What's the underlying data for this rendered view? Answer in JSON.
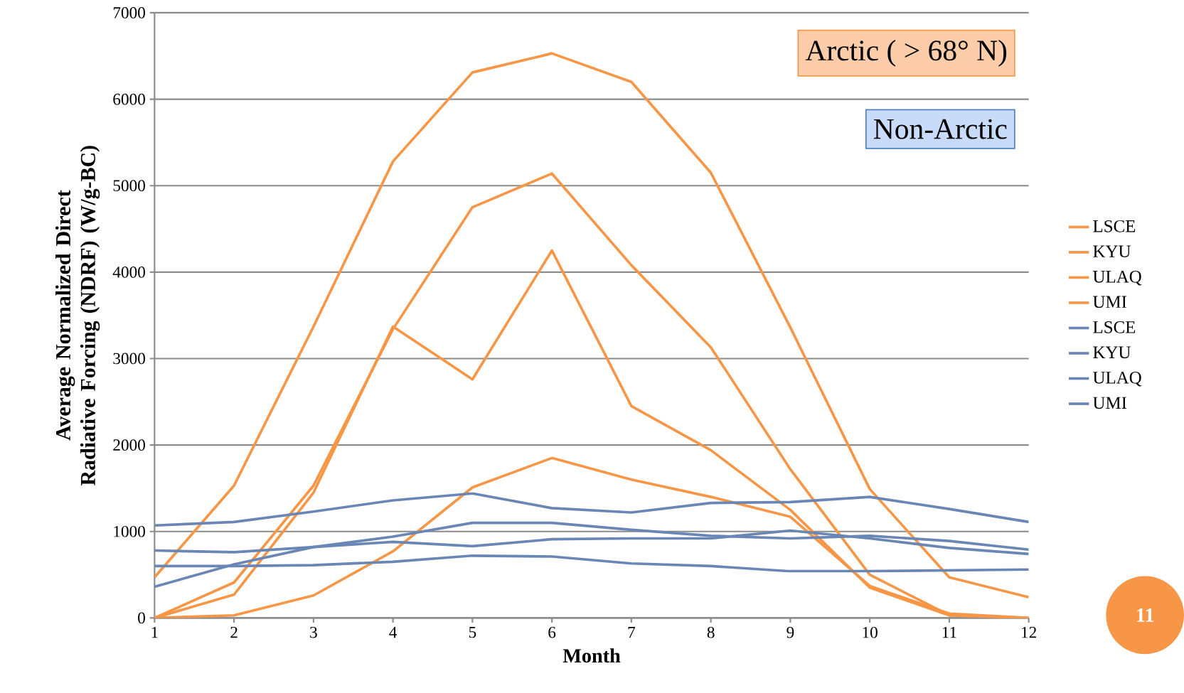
{
  "chart_data": {
    "type": "line",
    "xlabel": "Month",
    "ylabel": "Average Normalized Direct Radiative Forcing (NDRF) (W/g-BC)",
    "x": [
      1,
      2,
      3,
      4,
      5,
      6,
      7,
      8,
      9,
      10,
      11,
      12
    ],
    "xlim": [
      1,
      12
    ],
    "xticks": [
      1,
      2,
      3,
      4,
      5,
      6,
      7,
      8,
      9,
      10,
      11,
      12
    ],
    "ylim": [
      0,
      7000
    ],
    "yticks": [
      0,
      1000,
      2000,
      3000,
      4000,
      5000,
      6000,
      7000
    ],
    "grid": "y",
    "legend": "right",
    "marker": "none",
    "line_style": "solid",
    "annotations": [
      "Arctic ( > 68° N)",
      "Non-Arctic",
      "11"
    ],
    "series": [
      {
        "name": "LSCE",
        "color": "#f79646",
        "values": [
          470,
          1530,
          3370,
          5280,
          6310,
          6530,
          6200,
          5150,
          3360,
          1490,
          470,
          240
        ]
      },
      {
        "name": "KYU",
        "color": "#f79646",
        "values": [
          0,
          410,
          1530,
          3340,
          4750,
          5140,
          4080,
          3130,
          1720,
          500,
          30,
          0
        ]
      },
      {
        "name": "ULAQ",
        "color": "#f79646",
        "values": [
          0,
          270,
          1450,
          3370,
          2760,
          4250,
          2450,
          1940,
          1250,
          350,
          30,
          0
        ]
      },
      {
        "name": "UMI",
        "color": "#f79646",
        "values": [
          0,
          30,
          260,
          770,
          1510,
          1850,
          1600,
          1400,
          1170,
          370,
          50,
          0
        ]
      },
      {
        "name": "LSCE",
        "color": "#6a86b5",
        "values": [
          1070,
          1110,
          1230,
          1360,
          1440,
          1270,
          1220,
          1330,
          1340,
          1400,
          1260,
          1110
        ]
      },
      {
        "name": "KYU",
        "color": "#6a86b5",
        "values": [
          780,
          760,
          820,
          880,
          830,
          910,
          920,
          920,
          1010,
          920,
          810,
          740
        ]
      },
      {
        "name": "ULAQ",
        "color": "#6a86b5",
        "values": [
          360,
          620,
          820,
          940,
          1100,
          1100,
          1020,
          950,
          920,
          950,
          890,
          790
        ]
      },
      {
        "name": "UMI",
        "color": "#6a86b5",
        "values": [
          600,
          600,
          610,
          650,
          720,
          710,
          630,
          600,
          540,
          540,
          550,
          560
        ]
      }
    ]
  }
}
